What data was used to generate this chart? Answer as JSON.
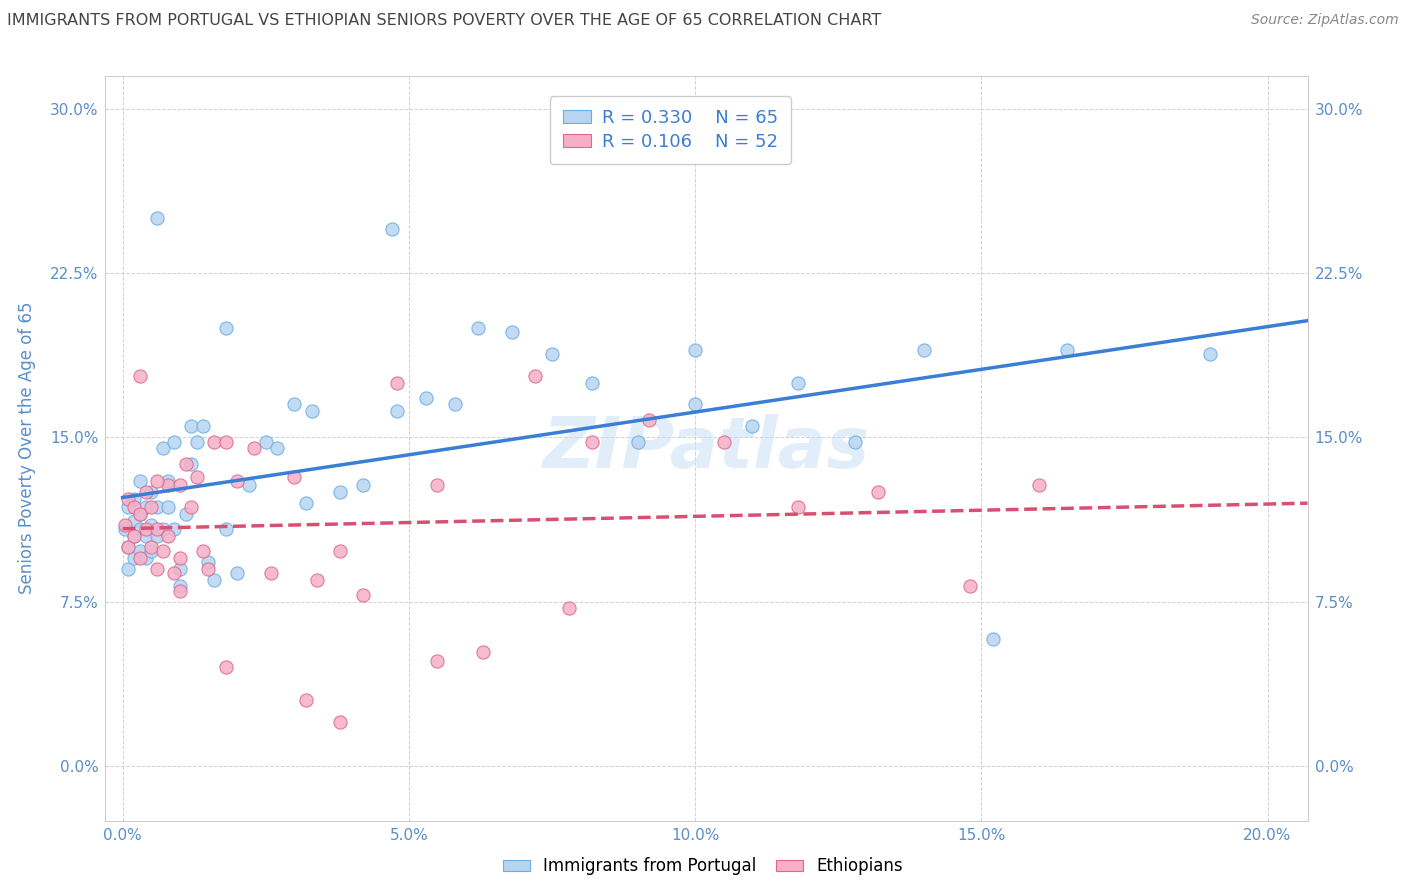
{
  "title": "IMMIGRANTS FROM PORTUGAL VS ETHIOPIAN SENIORS POVERTY OVER THE AGE OF 65 CORRELATION CHART",
  "source": "Source: ZipAtlas.com",
  "ylabel": "Seniors Poverty Over the Age of 65",
  "xlabel_ticks": [
    "0.0%",
    "5.0%",
    "10.0%",
    "15.0%",
    "20.0%"
  ],
  "ylabel_ticks": [
    "0.0%",
    "7.5%",
    "15.0%",
    "22.5%",
    "30.0%"
  ],
  "xtick_vals": [
    0.0,
    0.05,
    0.1,
    0.15,
    0.2
  ],
  "ytick_vals": [
    0.0,
    0.075,
    0.15,
    0.225,
    0.3
  ],
  "xlim": [
    -0.003,
    0.207
  ],
  "ylim": [
    -0.025,
    0.315
  ],
  "legend_label1": "Immigrants from Portugal",
  "legend_label2": "Ethiopians",
  "R1": "0.330",
  "N1": "65",
  "R2": "0.106",
  "N2": "52",
  "color1": "#b8d4f0",
  "color2": "#f5b0c8",
  "edge_color1": "#6aaee8",
  "edge_color2": "#e06888",
  "line_color1": "#3a7fd5",
  "line_color2": "#d85070",
  "axis_tick_color": "#5a8fc8",
  "title_color": "#444444",
  "source_color": "#888888",
  "watermark": "ZIPatlas",
  "scatter1_x": [
    0.0005,
    0.001,
    0.001,
    0.001,
    0.002,
    0.002,
    0.002,
    0.002,
    0.003,
    0.003,
    0.003,
    0.003,
    0.004,
    0.004,
    0.004,
    0.005,
    0.005,
    0.005,
    0.006,
    0.006,
    0.006,
    0.007,
    0.007,
    0.008,
    0.008,
    0.009,
    0.009,
    0.01,
    0.01,
    0.011,
    0.012,
    0.012,
    0.013,
    0.014,
    0.015,
    0.016,
    0.018,
    0.02,
    0.022,
    0.025,
    0.027,
    0.03,
    0.033,
    0.038,
    0.042,
    0.047,
    0.053,
    0.058,
    0.062,
    0.068,
    0.075,
    0.082,
    0.09,
    0.1,
    0.11,
    0.118,
    0.128,
    0.14,
    0.152,
    0.165,
    0.018,
    0.032,
    0.048,
    0.1,
    0.19
  ],
  "scatter1_y": [
    0.108,
    0.118,
    0.1,
    0.09,
    0.122,
    0.112,
    0.105,
    0.095,
    0.13,
    0.115,
    0.108,
    0.098,
    0.118,
    0.105,
    0.095,
    0.125,
    0.11,
    0.098,
    0.118,
    0.105,
    0.25,
    0.145,
    0.108,
    0.13,
    0.118,
    0.148,
    0.108,
    0.09,
    0.082,
    0.115,
    0.155,
    0.138,
    0.148,
    0.155,
    0.093,
    0.085,
    0.108,
    0.088,
    0.128,
    0.148,
    0.145,
    0.165,
    0.162,
    0.125,
    0.128,
    0.245,
    0.168,
    0.165,
    0.2,
    0.198,
    0.188,
    0.175,
    0.148,
    0.165,
    0.155,
    0.175,
    0.148,
    0.19,
    0.058,
    0.19,
    0.2,
    0.12,
    0.162,
    0.19,
    0.188
  ],
  "scatter2_x": [
    0.0005,
    0.001,
    0.001,
    0.002,
    0.002,
    0.003,
    0.003,
    0.004,
    0.004,
    0.005,
    0.005,
    0.006,
    0.006,
    0.007,
    0.008,
    0.008,
    0.009,
    0.01,
    0.01,
    0.011,
    0.012,
    0.013,
    0.014,
    0.015,
    0.016,
    0.018,
    0.02,
    0.023,
    0.026,
    0.03,
    0.034,
    0.038,
    0.042,
    0.048,
    0.055,
    0.063,
    0.072,
    0.082,
    0.092,
    0.105,
    0.118,
    0.132,
    0.148,
    0.078,
    0.055,
    0.032,
    0.018,
    0.01,
    0.006,
    0.003,
    0.038,
    0.16
  ],
  "scatter2_y": [
    0.11,
    0.122,
    0.1,
    0.118,
    0.105,
    0.115,
    0.095,
    0.125,
    0.108,
    0.118,
    0.1,
    0.108,
    0.09,
    0.098,
    0.128,
    0.105,
    0.088,
    0.128,
    0.095,
    0.138,
    0.118,
    0.132,
    0.098,
    0.09,
    0.148,
    0.148,
    0.13,
    0.145,
    0.088,
    0.132,
    0.085,
    0.098,
    0.078,
    0.175,
    0.128,
    0.052,
    0.178,
    0.148,
    0.158,
    0.148,
    0.118,
    0.125,
    0.082,
    0.072,
    0.048,
    0.03,
    0.045,
    0.08,
    0.13,
    0.178,
    0.02,
    0.128
  ]
}
